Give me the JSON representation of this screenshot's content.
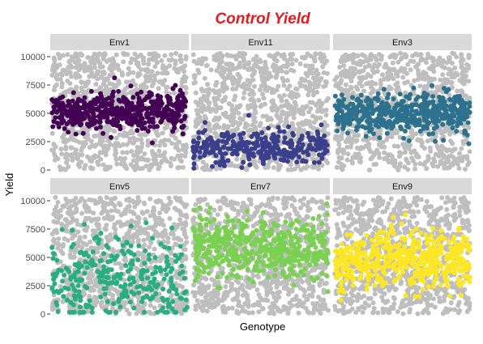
{
  "chart_data": {
    "type": "scatter",
    "title": "Control Yield",
    "xlabel": "Genotype",
    "ylabel": "Yield",
    "ylim": [
      0,
      10500
    ],
    "yticks": [
      0,
      2500,
      5000,
      7500,
      10000
    ],
    "x_tick_labels": "none",
    "grid": true,
    "facet_layout": {
      "rows": 2,
      "cols": 3
    },
    "background_series": {
      "color": "#bebebe",
      "description": "all environments combined",
      "y_range": [
        0,
        10300
      ],
      "points_per_panel": 900
    },
    "panels": [
      {
        "name": "Env1",
        "color": "#440154",
        "y_center": 5200,
        "y_spread": 750,
        "points": 480
      },
      {
        "name": "Env11",
        "color": "#3b3f8c",
        "y_center": 2000,
        "y_spread": 850,
        "points": 300
      },
      {
        "name": "Env3",
        "color": "#2c728e",
        "y_center": 5000,
        "y_spread": 800,
        "points": 480
      },
      {
        "name": "Env5",
        "color": "#28ae80",
        "y_center": 3200,
        "y_spread": 2100,
        "points": 300
      },
      {
        "name": "Env7",
        "color": "#7ad151",
        "y_center": 5800,
        "y_spread": 1400,
        "points": 480
      },
      {
        "name": "Env9",
        "color": "#fde725",
        "y_center": 4800,
        "y_spread": 1200,
        "points": 480
      }
    ]
  }
}
